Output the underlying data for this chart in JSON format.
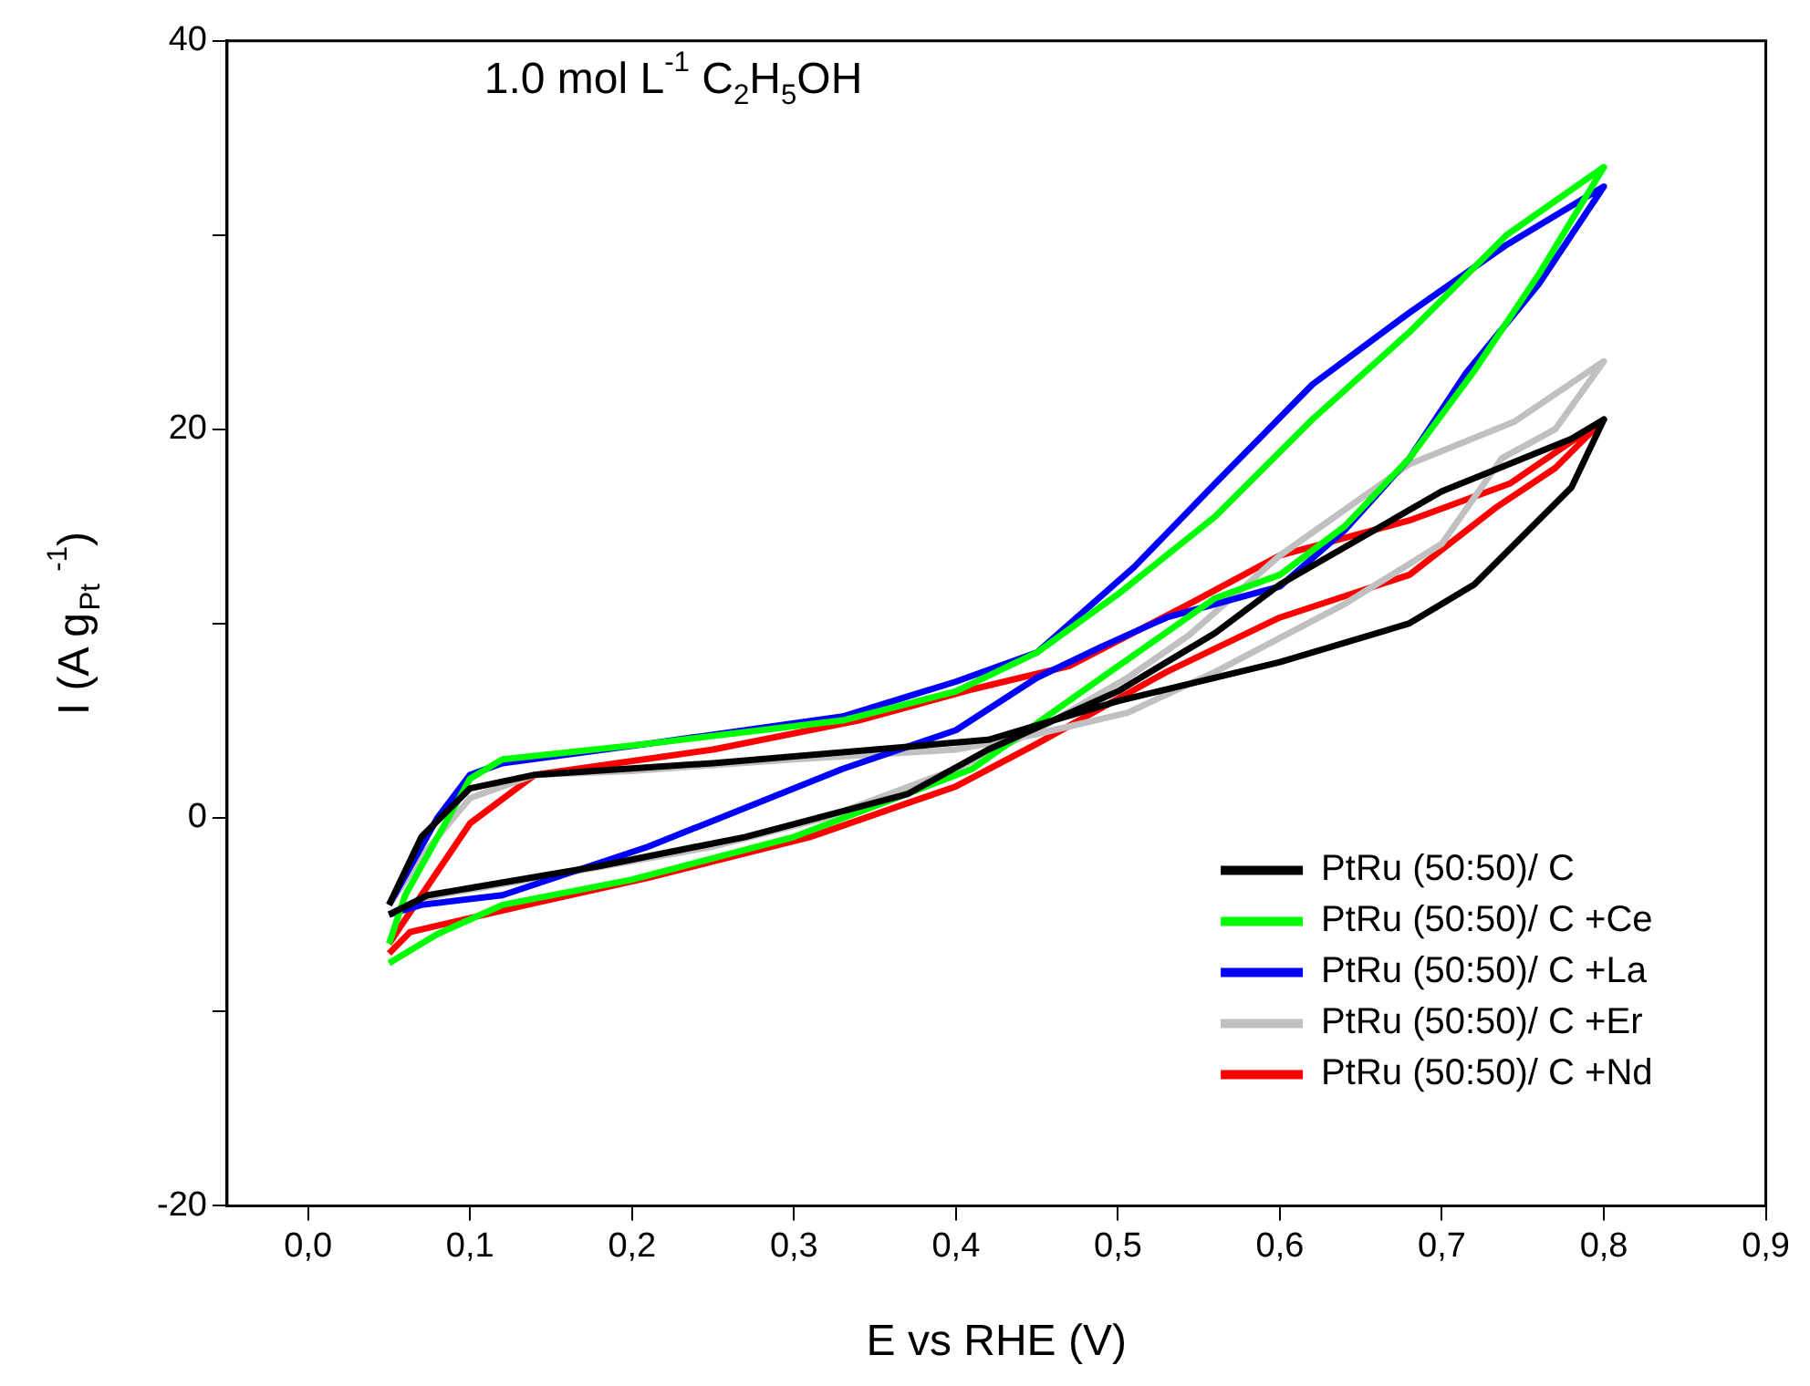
{
  "chart_data": {
    "type": "line",
    "xlabel": "E vs RHE (V)",
    "ylabel": "I (A g$_{Pt}$ $^{-1}$)",
    "annotations": [
      "1.0 mol L$^{-1}$ C$_{2}$H$_{5}$OH"
    ],
    "xlim": [
      -0.05,
      0.9
    ],
    "xticks": [
      {
        "value": 0,
        "label": "0,0"
      },
      {
        "value": 0.1,
        "label": "0,1"
      },
      {
        "value": 0.2,
        "label": "0,2"
      },
      {
        "value": 0.3,
        "label": "0,3"
      },
      {
        "value": 0.4,
        "label": "0,4"
      },
      {
        "value": 0.5,
        "label": "0,5"
      },
      {
        "value": 0.6,
        "label": "0,6"
      },
      {
        "value": 0.7,
        "label": "0,7"
      },
      {
        "value": 0.8,
        "label": "0,8"
      },
      {
        "value": 0.9,
        "label": "0,9"
      }
    ],
    "ylim": [
      -20,
      40
    ],
    "yticks": [
      -20,
      {
        "value": -10,
        "label": null
      },
      0,
      {
        "value": 10,
        "label": null
      },
      20,
      {
        "value": 30,
        "label": null
      },
      40
    ],
    "grid": false,
    "legend": "bottom right",
    "line_style": "solid",
    "marker": "none",
    "series": [
      {
        "name": "PtRu (50:50)/ C",
        "color": "#000000",
        "x": [
          0.05,
          0.074,
          0.18,
          0.27,
          0.37,
          0.42,
          0.5,
          0.56,
          0.6,
          0.7,
          0.78,
          0.8,
          0.78,
          0.72,
          0.68,
          0.6,
          0.5,
          0.42,
          0.25,
          0.14,
          0.1,
          0.07,
          0.05
        ],
        "values": [
          -5,
          -4,
          -2.5,
          -1,
          1.2,
          3.5,
          6.5,
          9.5,
          12,
          16.8,
          19.5,
          20.5,
          17,
          12,
          10,
          8,
          6,
          4,
          2.8,
          2.2,
          1.5,
          -1,
          -4.5
        ]
      },
      {
        "name": "PtRu (50:50)/ C +Ce",
        "color": "#00ff00",
        "x": [
          0.05,
          0.08,
          0.12,
          0.2,
          0.3,
          0.41,
          0.49,
          0.56,
          0.6,
          0.64,
          0.68,
          0.72,
          0.76,
          0.8,
          0.74,
          0.68,
          0.62,
          0.56,
          0.5,
          0.45,
          0.4,
          0.33,
          0.21,
          0.12,
          0.1,
          0.08,
          0.06,
          0.05
        ],
        "values": [
          -7.5,
          -6,
          -4.5,
          -3.2,
          -1,
          2.5,
          7.2,
          11.3,
          12.5,
          15,
          18.5,
          23,
          28,
          33.5,
          30,
          25,
          20.5,
          15.5,
          11.5,
          8.5,
          6.5,
          5,
          3.8,
          3,
          2,
          -1,
          -4,
          -6.5
        ]
      },
      {
        "name": "PtRu (50:50)/ C +La",
        "color": "#0000ff",
        "x": [
          0.05,
          0.07,
          0.12,
          0.21,
          0.33,
          0.4,
          0.45,
          0.49,
          0.53,
          0.6,
          0.64,
          0.68,
          0.715,
          0.76,
          0.8,
          0.74,
          0.68,
          0.62,
          0.56,
          0.51,
          0.45,
          0.4,
          0.33,
          0.21,
          0.12,
          0.1,
          0.08,
          0.06,
          0.05
        ],
        "values": [
          -5,
          -4.5,
          -4,
          -1.5,
          2.5,
          4.5,
          7.2,
          8.8,
          10.3,
          11.9,
          14.8,
          18.5,
          22.9,
          27.5,
          32.5,
          29.5,
          26,
          22.3,
          17.2,
          12.9,
          8.5,
          7,
          5.2,
          3.8,
          2.8,
          2.2,
          0,
          -3,
          -4.5
        ]
      },
      {
        "name": "PtRu (50:50)/ C +Er",
        "color": "#c0c0c0",
        "x": [
          0.05,
          0.08,
          0.15,
          0.25,
          0.32,
          0.4,
          0.45,
          0.506,
          0.544,
          0.6,
          0.68,
          0.745,
          0.8,
          0.77,
          0.737,
          0.7,
          0.64,
          0.56,
          0.506,
          0.45,
          0.4,
          0.3,
          0.2,
          0.14,
          0.1,
          0.07,
          0.05
        ],
        "values": [
          -5,
          -4,
          -3,
          -1.5,
          0,
          2.5,
          4.5,
          7.2,
          9.4,
          13.5,
          18.2,
          20.4,
          23.5,
          20,
          18.5,
          14.1,
          11,
          7.5,
          5.4,
          4.3,
          3.5,
          3,
          2.4,
          2.2,
          1,
          -2,
          -4.5
        ]
      },
      {
        "name": "PtRu (50:50)/ C +Nd",
        "color": "#ff0000",
        "x": [
          0.05,
          0.063,
          0.14,
          0.21,
          0.31,
          0.4,
          0.45,
          0.53,
          0.6,
          0.68,
          0.734,
          0.77,
          0.8,
          0.742,
          0.68,
          0.6,
          0.544,
          0.47,
          0.41,
          0.34,
          0.25,
          0.14,
          0.1,
          0.07,
          0.05
        ],
        "values": [
          -7,
          -5.9,
          -4.4,
          -3.1,
          -1,
          1.6,
          3.8,
          7.5,
          10.3,
          12.5,
          16,
          18,
          20.5,
          17.2,
          15.3,
          13.5,
          11,
          7.8,
          6.6,
          5,
          3.5,
          2.2,
          -0.3,
          -4,
          -6.5
        ]
      }
    ]
  }
}
